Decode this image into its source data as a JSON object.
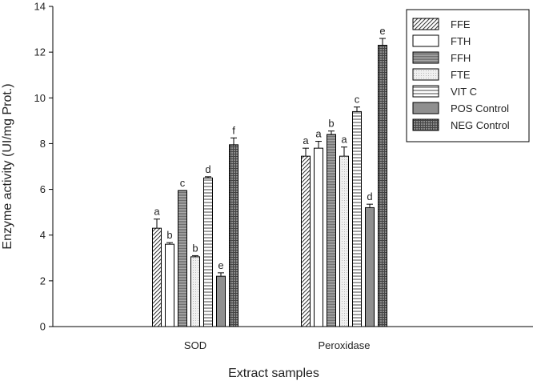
{
  "chart_data": {
    "type": "bar",
    "xlabel": "Extract samples",
    "ylabel": "Enzyme activity (UI/mg Prot.)",
    "ylim": [
      0,
      14
    ],
    "yticks": [
      0,
      2,
      4,
      6,
      8,
      10,
      12,
      14
    ],
    "grid": false,
    "legend_position": "top-right",
    "categories": [
      "SOD",
      "Peroxidase"
    ],
    "series": [
      {
        "name": "FFE",
        "pattern": "diagonal-hatch",
        "values": [
          4.3,
          7.45
        ],
        "errors": [
          0.4,
          0.35
        ],
        "labels": [
          "a",
          "a"
        ]
      },
      {
        "name": "FTH",
        "pattern": "white",
        "values": [
          3.6,
          7.8
        ],
        "errors": [
          0.07,
          0.3
        ],
        "labels": [
          "b",
          "a"
        ]
      },
      {
        "name": "FFH",
        "pattern": "fine-horizontal-gray",
        "values": [
          5.95,
          8.4
        ],
        "errors": [
          0.0,
          0.15
        ],
        "labels": [
          "c",
          "b"
        ]
      },
      {
        "name": "FTE",
        "pattern": "light-dots",
        "values": [
          3.05,
          7.45
        ],
        "errors": [
          0.05,
          0.4
        ],
        "labels": [
          "b",
          "a"
        ]
      },
      {
        "name": "VIT C",
        "pattern": "horizontal-lines",
        "values": [
          6.5,
          9.4
        ],
        "errors": [
          0.05,
          0.2
        ],
        "labels": [
          "d",
          "c"
        ]
      },
      {
        "name": "POS Control",
        "pattern": "solid-gray",
        "values": [
          2.2,
          5.2
        ],
        "errors": [
          0.15,
          0.15
        ],
        "labels": [
          "e",
          "d"
        ]
      },
      {
        "name": "NEG Control",
        "pattern": "cross-hatch",
        "values": [
          7.95,
          12.3
        ],
        "errors": [
          0.3,
          0.3
        ],
        "labels": [
          "f",
          "e"
        ]
      }
    ]
  }
}
